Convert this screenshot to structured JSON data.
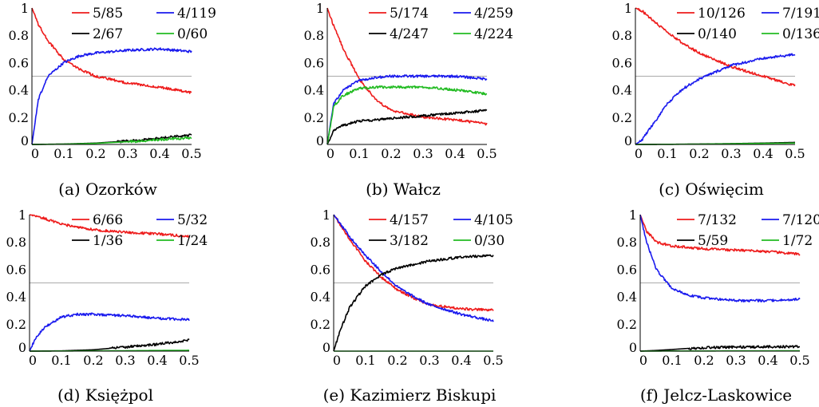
{
  "colors": {
    "red": "#ee1c1c",
    "blue": "#1a1aee",
    "black": "#000000",
    "green": "#22bb22",
    "reference_line": "#aaaaaa",
    "axis": "#000000"
  },
  "chart_data": [
    {
      "type": "line",
      "caption": "(a) Ozorków",
      "xlim": [
        0,
        0.5
      ],
      "ylim": [
        0,
        1
      ],
      "xticks": [
        "0",
        "0.1",
        "0.2",
        "0.3",
        "0.4",
        "0.5"
      ],
      "yticks": [
        "0",
        "0.2",
        "0.4",
        "0.6",
        "0.8",
        "1"
      ],
      "reference_y": 0.5,
      "legend_placement": "top-right",
      "series": [
        {
          "name": "5/85",
          "color": "red",
          "x": [
            0,
            0.02,
            0.05,
            0.1,
            0.15,
            0.2,
            0.3,
            0.4,
            0.5
          ],
          "y": [
            1.0,
            0.88,
            0.76,
            0.62,
            0.55,
            0.5,
            0.45,
            0.42,
            0.38
          ]
        },
        {
          "name": "4/119",
          "color": "blue",
          "x": [
            0,
            0.02,
            0.05,
            0.1,
            0.15,
            0.2,
            0.3,
            0.4,
            0.5
          ],
          "y": [
            0,
            0.33,
            0.5,
            0.6,
            0.65,
            0.67,
            0.69,
            0.7,
            0.68
          ]
        },
        {
          "name": "2/67",
          "color": "black",
          "x": [
            0,
            0.1,
            0.2,
            0.3,
            0.4,
            0.5
          ],
          "y": [
            0,
            0.003,
            0.01,
            0.025,
            0.045,
            0.07
          ]
        },
        {
          "name": "0/60",
          "color": "green",
          "x": [
            0,
            0.1,
            0.2,
            0.3,
            0.4,
            0.5
          ],
          "y": [
            0,
            0.002,
            0.008,
            0.02,
            0.035,
            0.05
          ]
        }
      ]
    },
    {
      "type": "line",
      "caption": "(b) Wałcz",
      "xlim": [
        0,
        0.5
      ],
      "ylim": [
        0,
        1
      ],
      "xticks": [
        "0",
        "0.1",
        "0.2",
        "0.3",
        "0.4",
        "0.5"
      ],
      "yticks": [
        "0",
        "0.2",
        "0.4",
        "0.6",
        "0.8",
        "1"
      ],
      "reference_y": 0.5,
      "legend_placement": "top-right",
      "series": [
        {
          "name": "5/174",
          "color": "red",
          "x": [
            0,
            0.02,
            0.05,
            0.1,
            0.15,
            0.2,
            0.3,
            0.4,
            0.5
          ],
          "y": [
            1.0,
            0.87,
            0.7,
            0.48,
            0.33,
            0.25,
            0.2,
            0.18,
            0.15
          ]
        },
        {
          "name": "4/259",
          "color": "blue",
          "x": [
            0,
            0.02,
            0.05,
            0.1,
            0.15,
            0.2,
            0.3,
            0.4,
            0.5
          ],
          "y": [
            0,
            0.3,
            0.4,
            0.47,
            0.49,
            0.5,
            0.5,
            0.5,
            0.48
          ]
        },
        {
          "name": "4/247",
          "color": "black",
          "x": [
            0,
            0.02,
            0.05,
            0.1,
            0.15,
            0.2,
            0.3,
            0.4,
            0.5
          ],
          "y": [
            0,
            0.1,
            0.14,
            0.17,
            0.18,
            0.19,
            0.21,
            0.23,
            0.25
          ]
        },
        {
          "name": "4/224",
          "color": "green",
          "x": [
            0,
            0.02,
            0.05,
            0.1,
            0.15,
            0.2,
            0.3,
            0.4,
            0.5
          ],
          "y": [
            0,
            0.28,
            0.36,
            0.41,
            0.42,
            0.42,
            0.42,
            0.4,
            0.37
          ]
        }
      ]
    },
    {
      "type": "line",
      "caption": "(c) Oświęcim",
      "xlim": [
        0,
        0.5
      ],
      "ylim": [
        0,
        1
      ],
      "xticks": [
        "0",
        "0.1",
        "0.2",
        "0.3",
        "0.4",
        "0.5"
      ],
      "yticks": [
        "0",
        "0.2",
        "0.4",
        "0.6",
        "0.8",
        "1"
      ],
      "reference_y": 0.5,
      "legend_placement": "top-right",
      "series": [
        {
          "name": "10/126",
          "color": "red",
          "x": [
            0,
            0.02,
            0.05,
            0.1,
            0.15,
            0.2,
            0.3,
            0.4,
            0.5
          ],
          "y": [
            1.0,
            0.98,
            0.92,
            0.82,
            0.74,
            0.67,
            0.57,
            0.5,
            0.43
          ]
        },
        {
          "name": "7/191",
          "color": "blue",
          "x": [
            0,
            0.02,
            0.05,
            0.1,
            0.15,
            0.2,
            0.3,
            0.4,
            0.5
          ],
          "y": [
            0,
            0.03,
            0.13,
            0.3,
            0.41,
            0.48,
            0.58,
            0.63,
            0.66
          ]
        },
        {
          "name": "0/140",
          "color": "black",
          "x": [
            0,
            0.1,
            0.2,
            0.3,
            0.4,
            0.5
          ],
          "y": [
            0,
            0.001,
            0.003,
            0.006,
            0.01,
            0.015
          ]
        },
        {
          "name": "0/136",
          "color": "green",
          "x": [
            0,
            0.1,
            0.2,
            0.3,
            0.4,
            0.5
          ],
          "y": [
            0,
            0.001,
            0.002,
            0.005,
            0.008,
            0.01
          ]
        }
      ]
    },
    {
      "type": "line",
      "caption": "(d) Księżpol",
      "xlim": [
        0,
        0.5
      ],
      "ylim": [
        0,
        1
      ],
      "xticks": [
        "0",
        "0.1",
        "0.2",
        "0.3",
        "0.4",
        "0.5"
      ],
      "yticks": [
        "0",
        "0.2",
        "0.4",
        "0.6",
        "0.8",
        "1"
      ],
      "reference_y": 0.5,
      "legend_placement": "top-right",
      "series": [
        {
          "name": "6/66",
          "color": "red",
          "x": [
            0,
            0.05,
            0.1,
            0.15,
            0.2,
            0.3,
            0.4,
            0.5
          ],
          "y": [
            1.0,
            0.97,
            0.93,
            0.91,
            0.89,
            0.87,
            0.86,
            0.84
          ]
        },
        {
          "name": "5/32",
          "color": "blue",
          "x": [
            0,
            0.02,
            0.05,
            0.1,
            0.15,
            0.2,
            0.3,
            0.4,
            0.5
          ],
          "y": [
            0,
            0.1,
            0.18,
            0.25,
            0.27,
            0.27,
            0.26,
            0.24,
            0.23
          ]
        },
        {
          "name": "1/36",
          "color": "black",
          "x": [
            0,
            0.1,
            0.2,
            0.3,
            0.4,
            0.5
          ],
          "y": [
            0,
            0.002,
            0.01,
            0.03,
            0.05,
            0.08
          ]
        },
        {
          "name": "1/24",
          "color": "green",
          "x": [
            0,
            0.1,
            0.2,
            0.3,
            0.4,
            0.5
          ],
          "y": [
            0,
            0.001,
            0.002,
            0.003,
            0.005,
            0.006
          ]
        }
      ]
    },
    {
      "type": "line",
      "caption": "(e) Kazimierz Biskupi",
      "xlim": [
        0,
        0.5
      ],
      "ylim": [
        0,
        1
      ],
      "xticks": [
        "0",
        "0.1",
        "0.2",
        "0.3",
        "0.4",
        "0.5"
      ],
      "yticks": [
        "0",
        "0.2",
        "0.4",
        "0.6",
        "0.8",
        "1"
      ],
      "reference_y": 0.5,
      "legend_placement": "top-right",
      "series": [
        {
          "name": "4/157",
          "color": "red",
          "x": [
            0,
            0.05,
            0.1,
            0.15,
            0.2,
            0.25,
            0.3,
            0.4,
            0.5
          ],
          "y": [
            1.0,
            0.82,
            0.66,
            0.54,
            0.45,
            0.39,
            0.34,
            0.31,
            0.3
          ]
        },
        {
          "name": "4/105",
          "color": "blue",
          "x": [
            0,
            0.05,
            0.1,
            0.15,
            0.2,
            0.25,
            0.3,
            0.4,
            0.5
          ],
          "y": [
            1.0,
            0.84,
            0.7,
            0.58,
            0.47,
            0.4,
            0.34,
            0.27,
            0.22
          ]
        },
        {
          "name": "3/182",
          "color": "black",
          "x": [
            0,
            0.02,
            0.05,
            0.1,
            0.15,
            0.2,
            0.3,
            0.4,
            0.5
          ],
          "y": [
            0,
            0.15,
            0.32,
            0.48,
            0.56,
            0.61,
            0.66,
            0.69,
            0.7
          ]
        },
        {
          "name": "0/30",
          "color": "green",
          "x": [
            0,
            0.1,
            0.2,
            0.3,
            0.4,
            0.5
          ],
          "y": [
            0,
            0,
            0,
            0,
            0,
            0
          ]
        }
      ]
    },
    {
      "type": "line",
      "caption": "(f) Jelcz-Laskowice",
      "xlim": [
        0,
        0.5
      ],
      "ylim": [
        0,
        1
      ],
      "xticks": [
        "0",
        "0.1",
        "0.2",
        "0.3",
        "0.4",
        "0.5"
      ],
      "yticks": [
        "0",
        "0.2",
        "0.4",
        "0.6",
        "0.8",
        "1"
      ],
      "reference_y": 0.5,
      "legend_placement": "top-right",
      "series": [
        {
          "name": "7/132",
          "color": "red",
          "x": [
            0,
            0.02,
            0.05,
            0.1,
            0.15,
            0.2,
            0.3,
            0.4,
            0.5
          ],
          "y": [
            1.0,
            0.88,
            0.8,
            0.77,
            0.76,
            0.75,
            0.74,
            0.73,
            0.71
          ]
        },
        {
          "name": "7/120",
          "color": "blue",
          "x": [
            0,
            0.02,
            0.05,
            0.1,
            0.15,
            0.2,
            0.3,
            0.4,
            0.5
          ],
          "y": [
            1.0,
            0.8,
            0.6,
            0.46,
            0.41,
            0.39,
            0.37,
            0.37,
            0.38
          ]
        },
        {
          "name": "5/59",
          "color": "black",
          "x": [
            0,
            0.05,
            0.1,
            0.15,
            0.2,
            0.3,
            0.4,
            0.5
          ],
          "y": [
            0,
            0.005,
            0.012,
            0.02,
            0.025,
            0.03,
            0.032,
            0.034
          ]
        },
        {
          "name": "1/72",
          "color": "green",
          "x": [
            0,
            0.1,
            0.2,
            0.3,
            0.4,
            0.5
          ],
          "y": [
            0,
            0.001,
            0.001,
            0.002,
            0.002,
            0.003
          ]
        }
      ]
    }
  ]
}
